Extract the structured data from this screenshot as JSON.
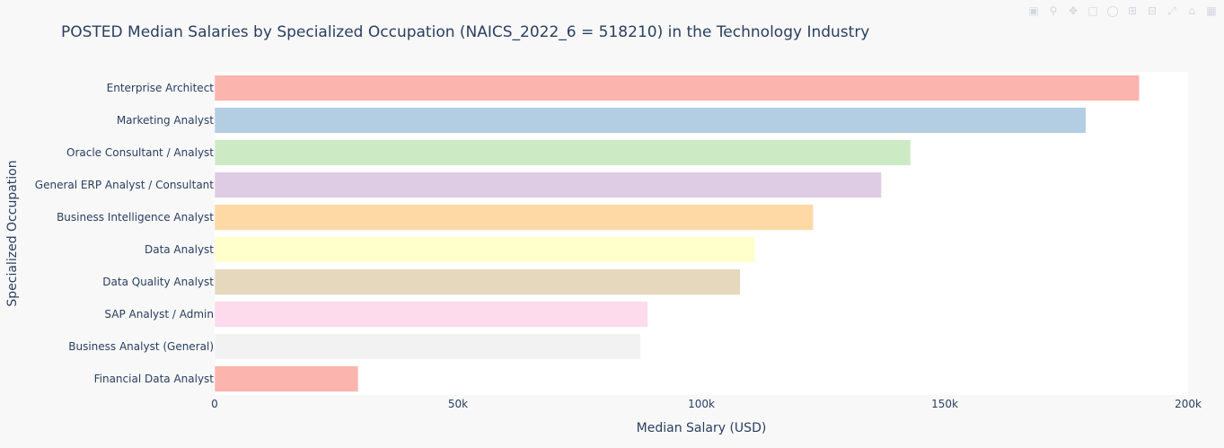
{
  "chart_data": {
    "type": "bar",
    "orientation": "horizontal",
    "title": "POSTED Median Salaries by Specialized Occupation (NAICS_2022_6 = 518210) in the Technology Industry",
    "xlabel": "Median Salary (USD)",
    "ylabel": "Specialized Occupation",
    "xlim": [
      0,
      200000
    ],
    "x_ticks": [
      {
        "value": 0,
        "label": "0"
      },
      {
        "value": 50000,
        "label": "50k"
      },
      {
        "value": 100000,
        "label": "100k"
      },
      {
        "value": 150000,
        "label": "150k"
      },
      {
        "value": 200000,
        "label": "200k"
      }
    ],
    "grid": false,
    "categories": [
      "Enterprise Architect",
      "Marketing Analyst",
      "Oracle Consultant / Analyst",
      "General ERP Analyst / Consultant",
      "Business Intelligence Analyst",
      "Data Analyst",
      "Data Quality Analyst",
      "SAP Analyst / Admin",
      "Business Analyst (General)",
      "Financial Data Analyst"
    ],
    "values": [
      190000,
      179000,
      143000,
      137000,
      123000,
      111000,
      108000,
      89000,
      87500,
      29500
    ],
    "colors": [
      "#fbb4ae",
      "#b3cde3",
      "#ccebc5",
      "#decbe4",
      "#fed9a6",
      "#ffffcc",
      "#e5d8bd",
      "#fddaec",
      "#f2f2f2",
      "#fbb4ae"
    ]
  },
  "modebar": {
    "icons": [
      "camera-icon",
      "zoom-icon",
      "pan-icon",
      "box-select-icon",
      "lasso-icon",
      "zoom-in-icon",
      "zoom-out-icon",
      "autoscale-icon",
      "reset-axes-icon",
      "plotly-logo-icon"
    ]
  }
}
